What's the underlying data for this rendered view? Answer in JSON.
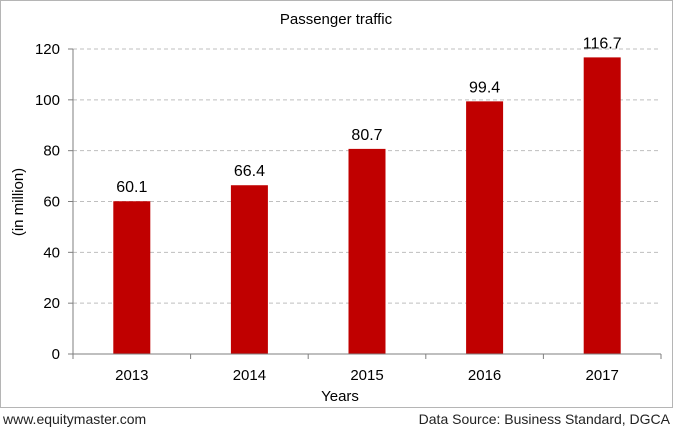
{
  "footer": {
    "website": "www.equitymaster.com",
    "source": "Data Source: Business Standard, DGCA"
  },
  "colors": {
    "bar": "#c00000",
    "grid": "#bfbfbf",
    "axis": "#7f7f7f",
    "text": "#000000"
  },
  "chart_data": {
    "type": "bar",
    "title": "Passenger traffic",
    "xlabel": "Years",
    "ylabel": "(in million)",
    "categories": [
      "2013",
      "2014",
      "2015",
      "2016",
      "2017"
    ],
    "values": [
      60.1,
      66.4,
      80.7,
      99.4,
      116.7
    ],
    "data_labels": [
      "60.1",
      "66.4",
      "80.7",
      "99.4",
      "116.7"
    ],
    "ylim": [
      0,
      120
    ],
    "yticks": [
      0,
      20,
      40,
      60,
      80,
      100,
      120
    ],
    "grid": true,
    "grid_style": "dashed",
    "legend": "none"
  }
}
